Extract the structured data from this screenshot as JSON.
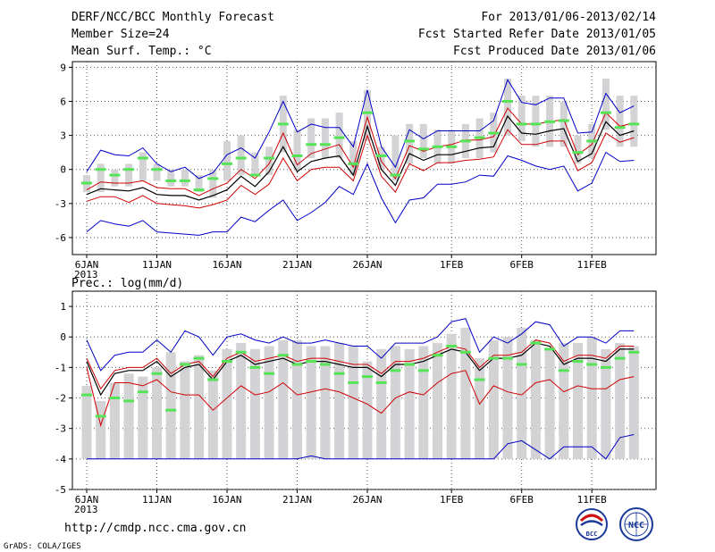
{
  "header": {
    "line1": "DERF/NCC/BCC Monthly Forecast",
    "line2": "Member Size=24",
    "line3": "Mean Surf. Temp.: °C",
    "right1": "For 2013/01/06-2013/02/14",
    "right2": "Fcst Started Refer Date 2013/01/05",
    "right3": "Fcst Produced Date 2013/01/06"
  },
  "footer": {
    "url": "http://cmdp.ncc.cma.gov.cn",
    "credit": "GrADS: COLA/IGES",
    "logo_bcc_text": "BCC",
    "logo_ncc_text": "NCC"
  },
  "colors": {
    "gray_bar": "#d3d3d6",
    "green_mark": "#55e455",
    "mean_line": "#000000",
    "red_line": "#d00000",
    "blue_line": "#0000c8",
    "grid": "#555555"
  },
  "chart_data": [
    {
      "type": "bar",
      "title": "Mean Surf. Temp.: °C",
      "x_dates": [
        "6JAN",
        "7JAN",
        "8JAN",
        "9JAN",
        "10JAN",
        "11JAN",
        "12JAN",
        "13JAN",
        "14JAN",
        "15JAN",
        "16JAN",
        "17JAN",
        "18JAN",
        "19JAN",
        "20JAN",
        "21JAN",
        "22JAN",
        "23JAN",
        "24JAN",
        "25JAN",
        "26JAN",
        "27JAN",
        "28JAN",
        "29JAN",
        "30JAN",
        "31JAN",
        "1FEB",
        "2FEB",
        "3FEB",
        "4FEB",
        "5FEB",
        "6FEB",
        "7FEB",
        "8FEB",
        "9FEB",
        "10FEB",
        "11FEB",
        "12FEB",
        "13FEB",
        "14FEB"
      ],
      "x_tick_labels": [
        "6JAN",
        "11JAN",
        "16JAN",
        "21JAN",
        "26JAN",
        "1FEB",
        "6FEB",
        "11FEB"
      ],
      "x_year_label": "2013",
      "ylim": [
        -7.5,
        9.5
      ],
      "y_ticks": [
        "9",
        "6",
        "3",
        "0",
        "-3",
        "-6"
      ],
      "y_tick_values": [
        9,
        6,
        3,
        0,
        -3,
        -6
      ],
      "series": [
        {
          "name": "observed range bars (top)",
          "values": [
            -0.5,
            0.5,
            0,
            0.5,
            1.5,
            0.5,
            0,
            0,
            -0.5,
            0,
            2.5,
            3,
            1.5,
            2,
            6.5,
            3.5,
            4.5,
            4.5,
            5,
            2.5,
            7,
            2,
            3,
            4,
            4,
            3.5,
            3.5,
            4,
            4.5,
            5,
            8,
            6.5,
            6.5,
            6.5,
            6,
            3,
            4,
            8,
            6.5,
            6.5
          ]
        },
        {
          "name": "observed range bars (bottom)",
          "values": [
            -2,
            -2,
            -1.5,
            -1.5,
            -1,
            -1,
            -1.5,
            -1.5,
            -2,
            -2.5,
            -1,
            -0.5,
            -0.5,
            -0.5,
            1.5,
            0,
            1,
            1,
            1,
            -0.5,
            2.5,
            0,
            -1,
            0.5,
            1,
            0.5,
            0.5,
            1,
            1,
            1.5,
            3,
            2.5,
            2,
            2,
            2,
            0.5,
            1,
            3.5,
            2,
            2
          ]
        },
        {
          "name": "observed (green)",
          "values": [
            -1.2,
            0,
            -0.5,
            0,
            1,
            0,
            -1,
            -1,
            -1.8,
            -0.8,
            0.5,
            1,
            -0.5,
            1,
            4,
            1.2,
            2.2,
            2.2,
            2.8,
            0.5,
            5,
            1.2,
            -0.5,
            2.5,
            1.8,
            2,
            2,
            2.5,
            2.8,
            3.2,
            6,
            4,
            4,
            4.2,
            4.3,
            1.5,
            2.5,
            5,
            3.7,
            4
          ]
        },
        {
          "name": "ensemble mean",
          "values": [
            -2.2,
            -1.7,
            -1.8,
            -1.9,
            -1.6,
            -2.2,
            -2.3,
            -2.3,
            -2.7,
            -2.3,
            -1.8,
            -0.6,
            -1.5,
            -0.2,
            2,
            -0.2,
            0.7,
            1,
            1.2,
            -0.5,
            3.8,
            0,
            -1.4,
            1.4,
            0.8,
            1.3,
            1.3,
            1.6,
            1.9,
            2,
            4.7,
            3.2,
            3.1,
            3.4,
            3.6,
            0.7,
            1.4,
            4.2,
            3,
            3.4
          ]
        },
        {
          "name": "upper (red)",
          "values": [
            -1.8,
            -1.1,
            -1.2,
            -1.2,
            -1,
            -1.6,
            -1.7,
            -1.7,
            -2.3,
            -1.7,
            -1.2,
            0,
            -0.8,
            0.5,
            3.2,
            0.4,
            1.4,
            1.8,
            2.2,
            0.2,
            4.6,
            0.7,
            -0.8,
            2.1,
            1.6,
            2,
            2.2,
            2.6,
            2.6,
            2.9,
            5.4,
            4,
            4,
            4.2,
            4.4,
            1.3,
            2.2,
            5,
            3.8,
            4.1
          ]
        },
        {
          "name": "lower (red)",
          "values": [
            -2.8,
            -2.4,
            -2.4,
            -2.9,
            -2.3,
            -3,
            -3.1,
            -3.2,
            -3.4,
            -3.1,
            -2.7,
            -1.4,
            -2.2,
            -1.3,
            1,
            -1,
            0,
            0.2,
            0.2,
            -1,
            3,
            -0.6,
            -2,
            0.5,
            -0.1,
            0.6,
            0.6,
            0.8,
            0.9,
            1.1,
            3.5,
            2.2,
            2.2,
            2.5,
            2.5,
            -0.1,
            0.6,
            3.2,
            2.4,
            2.8
          ]
        },
        {
          "name": "max (blue)",
          "values": [
            -0.2,
            1.7,
            1.3,
            1.2,
            1.9,
            0.5,
            -0.2,
            0.2,
            -0.8,
            -0.3,
            1.3,
            1.9,
            1,
            3.3,
            6,
            3.3,
            4,
            3.7,
            3.7,
            2,
            7,
            2,
            0.2,
            3.5,
            2.7,
            3.4,
            3.4,
            3.4,
            3.4,
            4.3,
            7.9,
            5.9,
            5.7,
            6.3,
            6.3,
            3.2,
            3.3,
            6.7,
            5,
            5.6
          ]
        },
        {
          "name": "min (blue)",
          "values": [
            -5.5,
            -4.5,
            -4.8,
            -5,
            -4.5,
            -5.5,
            -5.6,
            -5.7,
            -5.8,
            -5.5,
            -5.5,
            -4.2,
            -4.6,
            -3.6,
            -2.7,
            -4.5,
            -3.8,
            -2.9,
            -1.5,
            -2.2,
            0.5,
            -2.5,
            -4.7,
            -2.7,
            -2.5,
            -1.3,
            -1.3,
            -1.1,
            -0.5,
            -0.6,
            1.2,
            0.8,
            0.3,
            0,
            0.3,
            -1.9,
            -1.2,
            1.5,
            0.7,
            0.8
          ]
        }
      ]
    },
    {
      "type": "bar",
      "title": "Prec.: log(mm/d)",
      "x_dates": [
        "6JAN",
        "7JAN",
        "8JAN",
        "9JAN",
        "10JAN",
        "11JAN",
        "12JAN",
        "13JAN",
        "14JAN",
        "15JAN",
        "16JAN",
        "17JAN",
        "18JAN",
        "19JAN",
        "20JAN",
        "21JAN",
        "22JAN",
        "23JAN",
        "24JAN",
        "25JAN",
        "26JAN",
        "27JAN",
        "28JAN",
        "29JAN",
        "30JAN",
        "31JAN",
        "1FEB",
        "2FEB",
        "3FEB",
        "4FEB",
        "5FEB",
        "6FEB",
        "7FEB",
        "8FEB",
        "9FEB",
        "10FEB",
        "11FEB",
        "12FEB",
        "13FEB",
        "14FEB"
      ],
      "x_tick_labels": [
        "6JAN",
        "11JAN",
        "16JAN",
        "21JAN",
        "26JAN",
        "1FEB",
        "6FEB",
        "11FEB"
      ],
      "x_year_label": "2013",
      "ylim": [
        -5,
        1.5
      ],
      "y_ticks": [
        "1",
        "0",
        "-1",
        "-2",
        "-3",
        "-4",
        "-5"
      ],
      "y_tick_values": [
        1,
        0,
        -1,
        -2,
        -3,
        -4,
        -5
      ],
      "bar_bottom": -4,
      "series": [
        {
          "name": "observed range bars (top)",
          "values": [
            -1.6,
            -2.1,
            -1.5,
            -1.2,
            -1.3,
            -1,
            -0.5,
            -0.8,
            -0.6,
            -1.1,
            -0.4,
            -0.2,
            -0.4,
            -0.3,
            -0.1,
            -0.1,
            -0.3,
            -0.3,
            -0.2,
            -0.3,
            -0.8,
            -0.4,
            -0.3,
            -0.4,
            -0.3,
            -0.2,
            0.1,
            0.3,
            -0.7,
            -0.1,
            0,
            0.3,
            -0.1,
            -0.4,
            -0.2,
            -0.2,
            0,
            -0.4,
            -0.2,
            -0.3
          ]
        },
        {
          "name": "observed (green)",
          "values": [
            -1.9,
            -2.6,
            -2,
            -2.1,
            -1.8,
            -1.2,
            -2.4,
            -0.9,
            -0.7,
            -1.4,
            -0.8,
            -0.5,
            -1,
            -1.2,
            -0.6,
            -0.9,
            -0.8,
            -0.9,
            -1.2,
            -1.5,
            -1.3,
            -1.5,
            -1.1,
            -0.9,
            -1.1,
            -0.6,
            -0.3,
            -0.5,
            -1.4,
            -0.7,
            -0.7,
            -0.9,
            -0.2,
            -0.4,
            -1.1,
            -0.8,
            -0.9,
            -1,
            -0.7,
            -0.5
          ]
        },
        {
          "name": "ensemble mean",
          "values": [
            -0.8,
            -1.9,
            -1.2,
            -1.1,
            -1.1,
            -0.8,
            -1.3,
            -1,
            -0.9,
            -1.4,
            -0.8,
            -0.6,
            -0.9,
            -0.8,
            -0.7,
            -0.9,
            -0.8,
            -0.8,
            -0.9,
            -1,
            -1,
            -1.3,
            -0.9,
            -0.9,
            -0.8,
            -0.6,
            -0.4,
            -0.5,
            -1.1,
            -0.7,
            -0.7,
            -0.6,
            -0.2,
            -0.3,
            -0.9,
            -0.7,
            -0.7,
            -0.8,
            -0.4,
            -0.4
          ]
        },
        {
          "name": "upper (red)",
          "values": [
            -0.7,
            -1.7,
            -1.1,
            -1,
            -1,
            -0.7,
            -1.2,
            -0.9,
            -0.8,
            -1.3,
            -0.7,
            -0.5,
            -0.8,
            -0.7,
            -0.6,
            -0.8,
            -0.7,
            -0.7,
            -0.8,
            -0.9,
            -0.9,
            -1.2,
            -0.8,
            -0.8,
            -0.7,
            -0.5,
            -0.3,
            -0.4,
            -1,
            -0.6,
            -0.6,
            -0.5,
            -0.1,
            -0.2,
            -0.8,
            -0.6,
            -0.6,
            -0.7,
            -0.3,
            -0.3
          ]
        },
        {
          "name": "lower (red)",
          "values": [
            -1,
            -2.9,
            -1.5,
            -1.5,
            -1.6,
            -1.4,
            -1.8,
            -1.9,
            -1.9,
            -2.4,
            -2,
            -1.6,
            -1.9,
            -1.8,
            -1.5,
            -1.9,
            -1.8,
            -1.7,
            -1.8,
            -2,
            -2.2,
            -2.5,
            -2,
            -1.8,
            -1.9,
            -1.5,
            -1.2,
            -1.1,
            -2.2,
            -1.6,
            -1.8,
            -1.9,
            -1.5,
            -1.4,
            -1.8,
            -1.6,
            -1.7,
            -1.7,
            -1.4,
            -1.3
          ]
        },
        {
          "name": "max (blue)",
          "values": [
            -0.1,
            -1.1,
            -0.6,
            -0.5,
            -0.5,
            -0.1,
            -0.5,
            0.2,
            0,
            -0.6,
            0,
            0.1,
            -0.1,
            -0.2,
            0,
            -0.2,
            -0.2,
            -0.1,
            -0.2,
            -0.3,
            -0.3,
            -0.7,
            -0.2,
            -0.2,
            -0.2,
            0,
            0.5,
            0.6,
            -0.5,
            0,
            -0.2,
            0.1,
            0.5,
            0.4,
            -0.3,
            0,
            0,
            -0.2,
            0.2,
            0.2
          ]
        },
        {
          "name": "min (blue)",
          "values": [
            -4,
            -4,
            -4,
            -4,
            -4,
            -4,
            -4,
            -4,
            -4,
            -4,
            -4,
            -4,
            -4,
            -4,
            -4,
            -4,
            -3.9,
            -4,
            -4,
            -4,
            -4,
            -4,
            -4,
            -4,
            -4,
            -4,
            -4,
            -4,
            -4,
            -4,
            -3.5,
            -3.4,
            -3.7,
            -4,
            -3.6,
            -3.6,
            -3.6,
            -4,
            -3.3,
            -3.2
          ]
        }
      ]
    }
  ]
}
